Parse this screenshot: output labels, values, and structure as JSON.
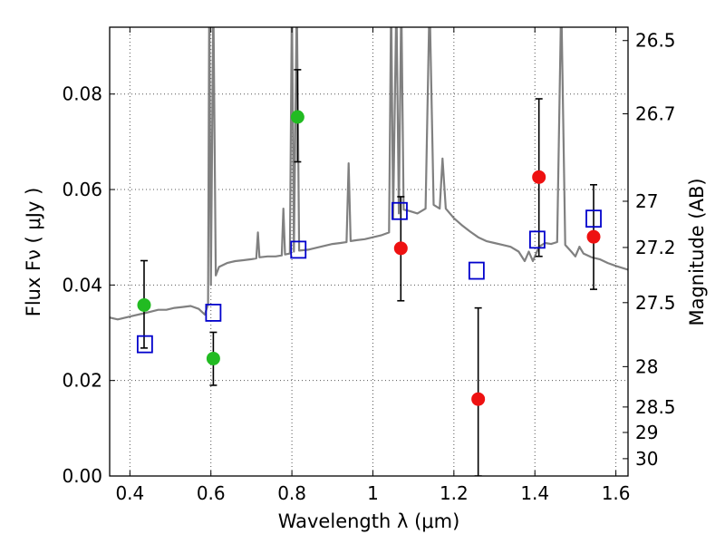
{
  "chart_data": {
    "type": "scatter",
    "xlabel": "Wavelength  λ (μm)",
    "ylabel": "Flux  Fν  ( μJy )",
    "y2label": "Magnitude (AB)",
    "xlim": [
      0.35,
      1.63
    ],
    "ylim": [
      0.0,
      0.094
    ],
    "grid": true,
    "x_ticks": [
      0.4,
      0.6,
      0.8,
      1.0,
      1.2,
      1.4,
      1.6
    ],
    "x_tick_labels": [
      "0.4",
      "0.6",
      "0.8",
      "1",
      "1.2",
      "1.4",
      "1.6"
    ],
    "y_ticks": [
      0.0,
      0.02,
      0.04,
      0.06,
      0.08
    ],
    "y_tick_labels": [
      "0.00",
      "0.02",
      "0.04",
      "0.06",
      "0.08"
    ],
    "y2_ticks": [
      "26.5",
      "26.7",
      "27",
      "27.2",
      "27.5",
      "28",
      "28.5",
      "29",
      "30"
    ],
    "colors": {
      "spectrum": "#808080",
      "green": "#22bb22",
      "red": "#ee1111",
      "model": "#0000cc",
      "errorbar": "#000000",
      "grid": "#555555"
    },
    "series": [
      {
        "marker": "circle",
        "color": "#22bb22",
        "points": [
          {
            "x": 0.435,
            "y": 0.0358,
            "err_lo": 0.0268,
            "err_hi": 0.0451
          },
          {
            "x": 0.606,
            "y": 0.0246,
            "err_lo": 0.019,
            "err_hi": 0.0301
          },
          {
            "x": 0.814,
            "y": 0.0752,
            "err_lo": 0.0658,
            "err_hi": 0.0851
          }
        ]
      },
      {
        "marker": "circle",
        "color": "#ee1111",
        "points": [
          {
            "x": 1.069,
            "y": 0.0477,
            "err_lo": 0.0367,
            "err_hi": 0.0585
          },
          {
            "x": 1.26,
            "y": 0.0161,
            "err_lo": 0.0,
            "err_hi": 0.0352
          },
          {
            "x": 1.41,
            "y": 0.0626,
            "err_lo": 0.046,
            "err_hi": 0.079
          },
          {
            "x": 1.545,
            "y": 0.0501,
            "err_lo": 0.0391,
            "err_hi": 0.061
          }
        ]
      },
      {
        "marker": "square",
        "color": "#0000cc",
        "points": [
          {
            "x": 0.437,
            "y": 0.0276
          },
          {
            "x": 0.606,
            "y": 0.0342
          },
          {
            "x": 0.816,
            "y": 0.0474
          },
          {
            "x": 1.066,
            "y": 0.0555
          },
          {
            "x": 1.256,
            "y": 0.043
          },
          {
            "x": 1.406,
            "y": 0.0495
          },
          {
            "x": 1.545,
            "y": 0.0539
          }
        ]
      }
    ],
    "spectrum": [
      [
        0.35,
        0.0332
      ],
      [
        0.37,
        0.0328
      ],
      [
        0.39,
        0.0332
      ],
      [
        0.41,
        0.0336
      ],
      [
        0.43,
        0.034
      ],
      [
        0.45,
        0.0344
      ],
      [
        0.47,
        0.0348
      ],
      [
        0.49,
        0.0348
      ],
      [
        0.51,
        0.0352
      ],
      [
        0.53,
        0.0354
      ],
      [
        0.55,
        0.0356
      ],
      [
        0.57,
        0.035
      ],
      [
        0.585,
        0.0338
      ],
      [
        0.593,
        0.036
      ],
      [
        0.596,
        0.1
      ],
      [
        0.6,
        0.04
      ],
      [
        0.606,
        0.1
      ],
      [
        0.612,
        0.042
      ],
      [
        0.62,
        0.0438
      ],
      [
        0.64,
        0.0446
      ],
      [
        0.66,
        0.045
      ],
      [
        0.68,
        0.0452
      ],
      [
        0.7,
        0.0454
      ],
      [
        0.712,
        0.0456
      ],
      [
        0.716,
        0.051
      ],
      [
        0.72,
        0.0458
      ],
      [
        0.74,
        0.046
      ],
      [
        0.76,
        0.046
      ],
      [
        0.775,
        0.0462
      ],
      [
        0.779,
        0.056
      ],
      [
        0.783,
        0.0464
      ],
      [
        0.795,
        0.0466
      ],
      [
        0.8,
        0.1
      ],
      [
        0.805,
        0.047
      ],
      [
        0.812,
        0.1
      ],
      [
        0.818,
        0.0472
      ],
      [
        0.84,
        0.0474
      ],
      [
        0.86,
        0.0478
      ],
      [
        0.88,
        0.0482
      ],
      [
        0.9,
        0.0486
      ],
      [
        0.92,
        0.0488
      ],
      [
        0.935,
        0.049
      ],
      [
        0.94,
        0.0655
      ],
      [
        0.945,
        0.0492
      ],
      [
        0.96,
        0.0494
      ],
      [
        0.98,
        0.0496
      ],
      [
        1.0,
        0.05
      ],
      [
        1.02,
        0.0504
      ],
      [
        1.04,
        0.051
      ],
      [
        1.045,
        0.1
      ],
      [
        1.05,
        0.054
      ],
      [
        1.058,
        0.1
      ],
      [
        1.064,
        0.055
      ],
      [
        1.07,
        0.1
      ],
      [
        1.076,
        0.0558
      ],
      [
        1.09,
        0.0555
      ],
      [
        1.11,
        0.055
      ],
      [
        1.13,
        0.056
      ],
      [
        1.14,
        0.1
      ],
      [
        1.15,
        0.0568
      ],
      [
        1.165,
        0.056
      ],
      [
        1.172,
        0.0665
      ],
      [
        1.18,
        0.056
      ],
      [
        1.2,
        0.054
      ],
      [
        1.22,
        0.0525
      ],
      [
        1.24,
        0.0512
      ],
      [
        1.26,
        0.05
      ],
      [
        1.28,
        0.0492
      ],
      [
        1.3,
        0.0488
      ],
      [
        1.32,
        0.0484
      ],
      [
        1.34,
        0.048
      ],
      [
        1.36,
        0.047
      ],
      [
        1.375,
        0.045
      ],
      [
        1.385,
        0.047
      ],
      [
        1.395,
        0.045
      ],
      [
        1.41,
        0.048
      ],
      [
        1.425,
        0.0488
      ],
      [
        1.44,
        0.0486
      ],
      [
        1.455,
        0.049
      ],
      [
        1.465,
        0.1
      ],
      [
        1.475,
        0.0484
      ],
      [
        1.49,
        0.047
      ],
      [
        1.5,
        0.046
      ],
      [
        1.51,
        0.048
      ],
      [
        1.52,
        0.0466
      ],
      [
        1.54,
        0.0458
      ],
      [
        1.56,
        0.0454
      ],
      [
        1.58,
        0.0446
      ],
      [
        1.6,
        0.044
      ],
      [
        1.63,
        0.0432
      ]
    ]
  }
}
